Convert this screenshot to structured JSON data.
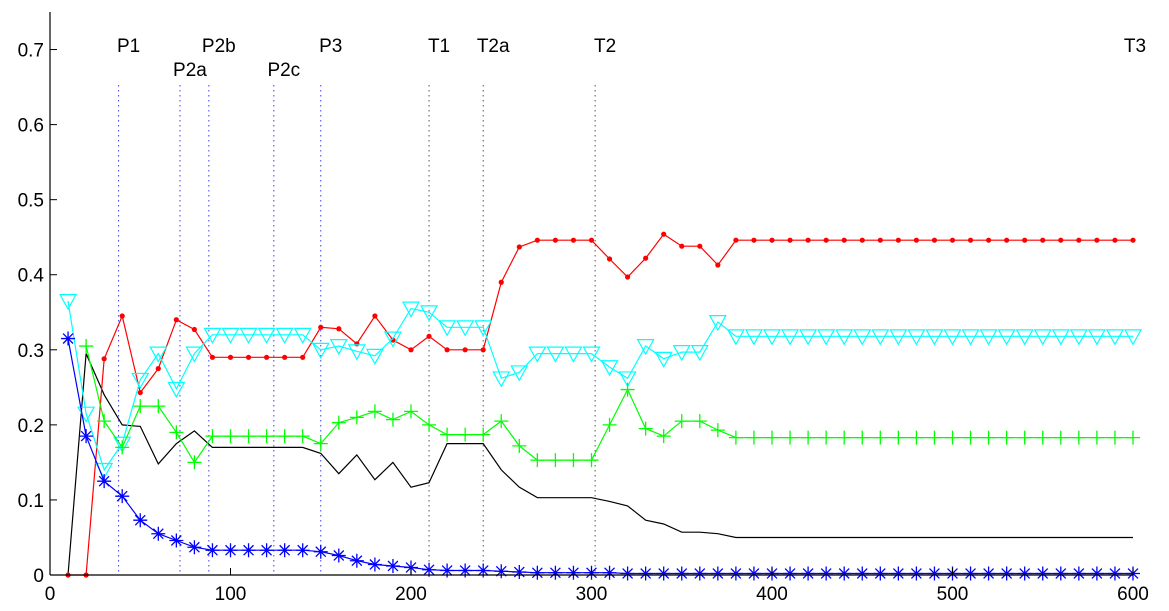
{
  "chart_data": {
    "type": "line",
    "title": "",
    "xlabel": "",
    "ylabel": "",
    "xlim": [
      0,
      600
    ],
    "ylim": [
      0,
      0.75
    ],
    "xticks": [
      0,
      100,
      200,
      300,
      400,
      500,
      600
    ],
    "yticks": [
      0,
      0.1,
      0.2,
      0.3,
      0.4,
      0.5,
      0.6,
      0.7
    ],
    "xtick_labels": [
      "0",
      "100",
      "200",
      "300",
      "400",
      "500",
      "600"
    ],
    "ytick_labels": [
      "0",
      "0.1",
      "0.2",
      "0.3",
      "0.4",
      "0.5",
      "0.6",
      "0.7"
    ],
    "grid": false,
    "event_lines": [
      {
        "label": "P1",
        "x": 38,
        "row": 0
      },
      {
        "label": "P2a",
        "x": 72,
        "row": 1
      },
      {
        "label": "P2b",
        "x": 88,
        "row": 0
      },
      {
        "label": "P2c",
        "x": 124,
        "row": 1
      },
      {
        "label": "P3",
        "x": 150,
        "row": 0
      },
      {
        "label": "T1",
        "x": 210,
        "row": 0
      },
      {
        "label": "T2a",
        "x": 240,
        "row": 0
      },
      {
        "label": "T2",
        "x": 302,
        "row": 0
      },
      {
        "label": "T3",
        "x": 600,
        "row": 0
      }
    ],
    "series": [
      {
        "color": "#000000",
        "marker": "none",
        "points": [
          [
            10,
            0
          ],
          [
            20,
            0.295
          ],
          [
            30,
            0.24
          ],
          [
            40,
            0.2
          ],
          [
            50,
            0.198
          ],
          [
            60,
            0.148
          ],
          [
            70,
            0.175
          ],
          [
            80,
            0.192
          ],
          [
            90,
            0.17
          ],
          [
            100,
            0.17
          ],
          [
            110,
            0.17
          ],
          [
            120,
            0.17
          ],
          [
            130,
            0.17
          ],
          [
            140,
            0.17
          ],
          [
            150,
            0.162
          ],
          [
            160,
            0.135
          ],
          [
            170,
            0.16
          ],
          [
            180,
            0.127
          ],
          [
            190,
            0.15
          ],
          [
            200,
            0.117
          ],
          [
            210,
            0.123
          ],
          [
            220,
            0.175
          ],
          [
            230,
            0.175
          ],
          [
            240,
            0.175
          ],
          [
            250,
            0.14
          ],
          [
            260,
            0.117
          ],
          [
            270,
            0.103
          ],
          [
            280,
            0.103
          ],
          [
            290,
            0.103
          ],
          [
            300,
            0.103
          ],
          [
            310,
            0.098
          ],
          [
            320,
            0.092
          ],
          [
            330,
            0.073
          ],
          [
            340,
            0.068
          ],
          [
            350,
            0.057
          ],
          [
            360,
            0.057
          ],
          [
            370,
            0.055
          ],
          [
            380,
            0.05
          ],
          [
            600,
            0.05
          ]
        ]
      },
      {
        "color": "#ff0000",
        "marker": "dot",
        "points": [
          [
            10,
            0
          ],
          [
            20,
            0
          ],
          [
            30,
            0.288
          ],
          [
            40,
            0.345
          ],
          [
            50,
            0.243
          ],
          [
            60,
            0.275
          ],
          [
            70,
            0.34
          ],
          [
            80,
            0.327
          ],
          [
            90,
            0.29
          ],
          [
            100,
            0.29
          ],
          [
            110,
            0.29
          ],
          [
            120,
            0.29
          ],
          [
            130,
            0.29
          ],
          [
            140,
            0.29
          ],
          [
            150,
            0.33
          ],
          [
            160,
            0.328
          ],
          [
            170,
            0.308
          ],
          [
            180,
            0.345
          ],
          [
            190,
            0.313
          ],
          [
            200,
            0.3
          ],
          [
            210,
            0.318
          ],
          [
            220,
            0.3
          ],
          [
            230,
            0.3
          ],
          [
            240,
            0.3
          ],
          [
            250,
            0.39
          ],
          [
            260,
            0.437
          ],
          [
            270,
            0.446
          ],
          [
            280,
            0.446
          ],
          [
            290,
            0.446
          ],
          [
            300,
            0.446
          ],
          [
            310,
            0.421
          ],
          [
            320,
            0.397
          ],
          [
            330,
            0.422
          ],
          [
            340,
            0.454
          ],
          [
            350,
            0.438
          ],
          [
            360,
            0.438
          ],
          [
            370,
            0.413
          ],
          [
            380,
            0.446
          ],
          [
            390,
            0.446
          ],
          [
            400,
            0.446
          ],
          [
            410,
            0.446
          ],
          [
            420,
            0.446
          ],
          [
            430,
            0.446
          ],
          [
            440,
            0.446
          ],
          [
            450,
            0.446
          ],
          [
            460,
            0.446
          ],
          [
            470,
            0.446
          ],
          [
            480,
            0.446
          ],
          [
            490,
            0.446
          ],
          [
            500,
            0.446
          ],
          [
            510,
            0.446
          ],
          [
            520,
            0.446
          ],
          [
            530,
            0.446
          ],
          [
            540,
            0.446
          ],
          [
            550,
            0.446
          ],
          [
            560,
            0.446
          ],
          [
            570,
            0.446
          ],
          [
            580,
            0.446
          ],
          [
            590,
            0.446
          ],
          [
            600,
            0.446
          ]
        ]
      },
      {
        "color": "#00ffff",
        "marker": "triangle-down",
        "points": [
          [
            10,
            0.365
          ],
          [
            20,
            0.215
          ],
          [
            30,
            0.14
          ],
          [
            40,
            0.175
          ],
          [
            50,
            0.26
          ],
          [
            60,
            0.295
          ],
          [
            70,
            0.248
          ],
          [
            80,
            0.295
          ],
          [
            90,
            0.32
          ],
          [
            100,
            0.32
          ],
          [
            110,
            0.32
          ],
          [
            120,
            0.32
          ],
          [
            130,
            0.32
          ],
          [
            140,
            0.32
          ],
          [
            150,
            0.3
          ],
          [
            160,
            0.305
          ],
          [
            170,
            0.298
          ],
          [
            180,
            0.292
          ],
          [
            190,
            0.315
          ],
          [
            200,
            0.355
          ],
          [
            210,
            0.35
          ],
          [
            220,
            0.33
          ],
          [
            230,
            0.33
          ],
          [
            240,
            0.33
          ],
          [
            250,
            0.262
          ],
          [
            260,
            0.27
          ],
          [
            270,
            0.295
          ],
          [
            280,
            0.295
          ],
          [
            290,
            0.295
          ],
          [
            300,
            0.295
          ],
          [
            310,
            0.277
          ],
          [
            320,
            0.262
          ],
          [
            330,
            0.305
          ],
          [
            340,
            0.288
          ],
          [
            350,
            0.297
          ],
          [
            360,
            0.297
          ],
          [
            370,
            0.337
          ],
          [
            380,
            0.318
          ],
          [
            390,
            0.318
          ],
          [
            400,
            0.318
          ],
          [
            410,
            0.318
          ],
          [
            420,
            0.318
          ],
          [
            430,
            0.318
          ],
          [
            440,
            0.318
          ],
          [
            450,
            0.318
          ],
          [
            460,
            0.318
          ],
          [
            470,
            0.318
          ],
          [
            480,
            0.318
          ],
          [
            490,
            0.318
          ],
          [
            500,
            0.318
          ],
          [
            510,
            0.318
          ],
          [
            520,
            0.318
          ],
          [
            530,
            0.318
          ],
          [
            540,
            0.318
          ],
          [
            550,
            0.318
          ],
          [
            560,
            0.318
          ],
          [
            570,
            0.318
          ],
          [
            580,
            0.318
          ],
          [
            590,
            0.318
          ],
          [
            600,
            0.318
          ]
        ]
      },
      {
        "color": "#00ff00",
        "marker": "plus",
        "points": [
          [
            20,
            0.305
          ],
          [
            30,
            0.205
          ],
          [
            40,
            0.17
          ],
          [
            50,
            0.225
          ],
          [
            60,
            0.225
          ],
          [
            70,
            0.19
          ],
          [
            80,
            0.15
          ],
          [
            90,
            0.185
          ],
          [
            100,
            0.185
          ],
          [
            110,
            0.185
          ],
          [
            120,
            0.185
          ],
          [
            130,
            0.185
          ],
          [
            140,
            0.185
          ],
          [
            150,
            0.175
          ],
          [
            160,
            0.203
          ],
          [
            170,
            0.21
          ],
          [
            180,
            0.218
          ],
          [
            190,
            0.207
          ],
          [
            200,
            0.218
          ],
          [
            210,
            0.2
          ],
          [
            220,
            0.187
          ],
          [
            230,
            0.187
          ],
          [
            240,
            0.187
          ],
          [
            250,
            0.205
          ],
          [
            260,
            0.172
          ],
          [
            270,
            0.153
          ],
          [
            280,
            0.153
          ],
          [
            290,
            0.153
          ],
          [
            300,
            0.153
          ],
          [
            310,
            0.2
          ],
          [
            320,
            0.247
          ],
          [
            330,
            0.195
          ],
          [
            340,
            0.185
          ],
          [
            350,
            0.205
          ],
          [
            360,
            0.205
          ],
          [
            370,
            0.193
          ],
          [
            380,
            0.183
          ],
          [
            390,
            0.183
          ],
          [
            400,
            0.183
          ],
          [
            410,
            0.183
          ],
          [
            420,
            0.183
          ],
          [
            430,
            0.183
          ],
          [
            440,
            0.183
          ],
          [
            450,
            0.183
          ],
          [
            460,
            0.183
          ],
          [
            470,
            0.183
          ],
          [
            480,
            0.183
          ],
          [
            490,
            0.183
          ],
          [
            500,
            0.183
          ],
          [
            510,
            0.183
          ],
          [
            520,
            0.183
          ],
          [
            530,
            0.183
          ],
          [
            540,
            0.183
          ],
          [
            550,
            0.183
          ],
          [
            560,
            0.183
          ],
          [
            570,
            0.183
          ],
          [
            580,
            0.183
          ],
          [
            590,
            0.183
          ],
          [
            600,
            0.183
          ]
        ]
      },
      {
        "color": "#0000ff",
        "marker": "asterisk",
        "points": [
          [
            10,
            0.315
          ],
          [
            20,
            0.185
          ],
          [
            30,
            0.125
          ],
          [
            40,
            0.105
          ],
          [
            50,
            0.073
          ],
          [
            60,
            0.055
          ],
          [
            70,
            0.046
          ],
          [
            80,
            0.037
          ],
          [
            90,
            0.033
          ],
          [
            100,
            0.033
          ],
          [
            110,
            0.033
          ],
          [
            120,
            0.033
          ],
          [
            130,
            0.033
          ],
          [
            140,
            0.033
          ],
          [
            150,
            0.031
          ],
          [
            160,
            0.026
          ],
          [
            170,
            0.019
          ],
          [
            180,
            0.014
          ],
          [
            190,
            0.012
          ],
          [
            200,
            0.01
          ],
          [
            210,
            0.007
          ],
          [
            220,
            0.006
          ],
          [
            230,
            0.006
          ],
          [
            240,
            0.006
          ],
          [
            250,
            0.005
          ],
          [
            260,
            0.004
          ],
          [
            270,
            0.003
          ],
          [
            280,
            0.003
          ],
          [
            290,
            0.003
          ],
          [
            300,
            0.003
          ],
          [
            310,
            0.003
          ],
          [
            320,
            0.002
          ],
          [
            330,
            0.002
          ],
          [
            340,
            0.002
          ],
          [
            350,
            0.002
          ],
          [
            360,
            0.002
          ],
          [
            370,
            0.002
          ],
          [
            380,
            0.002
          ],
          [
            390,
            0.002
          ],
          [
            400,
            0.002
          ],
          [
            410,
            0.002
          ],
          [
            420,
            0.002
          ],
          [
            430,
            0.002
          ],
          [
            440,
            0.002
          ],
          [
            450,
            0.002
          ],
          [
            460,
            0.002
          ],
          [
            470,
            0.002
          ],
          [
            480,
            0.002
          ],
          [
            490,
            0.002
          ],
          [
            500,
            0.002
          ],
          [
            510,
            0.002
          ],
          [
            520,
            0.002
          ],
          [
            530,
            0.002
          ],
          [
            540,
            0.002
          ],
          [
            550,
            0.002
          ],
          [
            560,
            0.002
          ],
          [
            570,
            0.002
          ],
          [
            580,
            0.002
          ],
          [
            590,
            0.002
          ],
          [
            600,
            0.002
          ]
        ]
      }
    ]
  }
}
